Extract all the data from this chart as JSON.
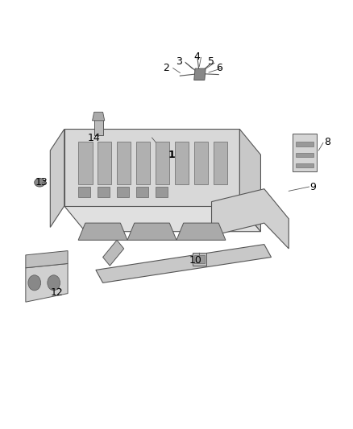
{
  "title": "",
  "background_color": "#ffffff",
  "fig_width": 4.38,
  "fig_height": 5.33,
  "dpi": 100,
  "text_color": "#000000",
  "line_color": "#555555",
  "part_color": "#888888",
  "label_fontsize": 9
}
